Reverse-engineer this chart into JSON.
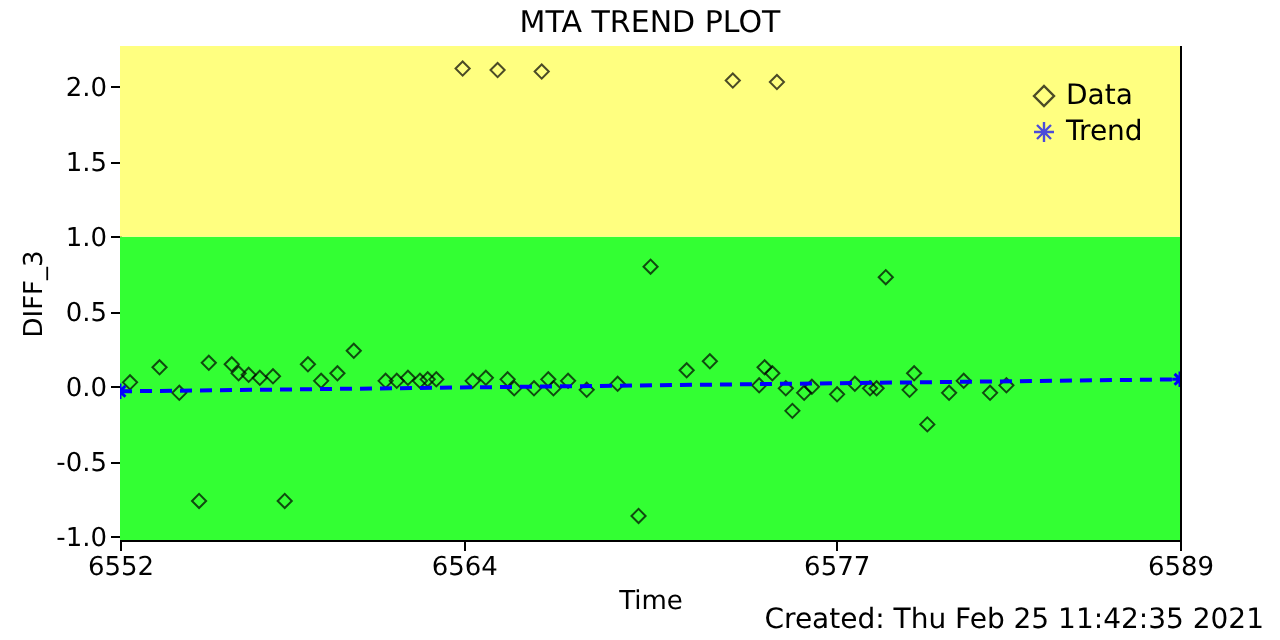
{
  "chart_data": {
    "type": "scatter",
    "title": "MTA TREND PLOT",
    "xlabel": "Time",
    "ylabel": "DIFF_3",
    "annotations": [
      "Created: Thu Feb 25 11:42:35 2021"
    ],
    "xlim": [
      6552,
      6589
    ],
    "xticks": [
      6552,
      6564,
      6577,
      6589
    ],
    "ylim": [
      -1.02,
      2.27
    ],
    "yticks": [
      {
        "value": -1.0,
        "label": "-1.0"
      },
      {
        "value": -0.5,
        "label": "-0.5"
      },
      {
        "value": 0.0,
        "label": "0.0"
      },
      {
        "value": 0.5,
        "label": "0.5"
      },
      {
        "value": 1.0,
        "label": "1.0"
      },
      {
        "value": 1.5,
        "label": "1.5"
      },
      {
        "value": 2.0,
        "label": "2.0"
      }
    ],
    "grid": false,
    "legend": "top right",
    "bands": [
      {
        "axis": "y",
        "from": -1.02,
        "to": 1.0,
        "color": "#33ff33"
      },
      {
        "axis": "y",
        "from": 1.0,
        "to": 2.27,
        "color": "#ffff80"
      }
    ],
    "series": [
      {
        "name": "Data",
        "type": "scatter",
        "color": "#000000",
        "marker": "diamond",
        "x": [
          6552.35,
          6553.38,
          6554.07,
          6554.76,
          6555.1,
          6555.9,
          6556.14,
          6556.49,
          6556.88,
          6557.34,
          6557.75,
          6558.56,
          6559.02,
          6559.59,
          6560.16,
          6561.27,
          6561.66,
          6562.05,
          6562.47,
          6562.74,
          6563.04,
          6563.96,
          6564.31,
          6564.77,
          6565.18,
          6565.53,
          6565.76,
          6566.45,
          6566.72,
          6566.95,
          6567.13,
          6567.64,
          6568.29,
          6569.37,
          6570.1,
          6570.52,
          6571.78,
          6572.59,
          6573.39,
          6574.31,
          6574.5,
          6574.77,
          6574.93,
          6575.24,
          6575.47,
          6575.88,
          6576.15,
          6577.03,
          6577.65,
          6578.18,
          6578.41,
          6578.73,
          6579.56,
          6579.72,
          6580.18,
          6580.94,
          6581.45,
          6582.37,
          6582.94
        ],
        "values": [
          0.03,
          0.13,
          -0.04,
          -0.76,
          0.16,
          0.15,
          0.09,
          0.08,
          0.06,
          0.07,
          -0.76,
          0.15,
          0.04,
          0.09,
          0.24,
          0.04,
          0.04,
          0.06,
          0.04,
          0.05,
          0.05,
          2.12,
          0.04,
          0.06,
          2.11,
          0.05,
          -0.01,
          -0.01,
          2.1,
          0.05,
          -0.01,
          0.04,
          -0.02,
          0.02,
          -0.86,
          0.8,
          0.11,
          0.17,
          2.04,
          0.01,
          0.13,
          0.09,
          2.03,
          -0.01,
          -0.16,
          -0.04,
          0.0,
          -0.05,
          0.02,
          -0.01,
          -0.01,
          0.73,
          -0.02,
          0.09,
          -0.25,
          -0.04,
          0.04,
          -0.04,
          0.01
        ]
      },
      {
        "name": "Trend",
        "type": "line",
        "color": "#0000ff",
        "marker": "cross",
        "line_style": "dashed",
        "x": [
          6552,
          6589
        ],
        "values": [
          -0.03,
          0.05
        ]
      }
    ]
  }
}
